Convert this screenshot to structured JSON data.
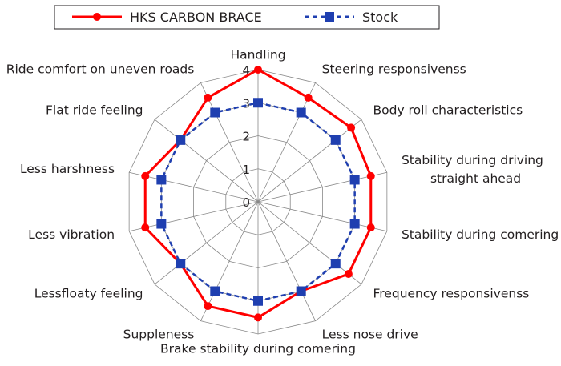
{
  "chart_data": {
    "type": "radar",
    "categories": [
      "Handling",
      "Steering responsivenss",
      "Body roll characteristics",
      "Stability during driving\nstraight ahead",
      "Stability during comering",
      "Frequency responsivenss",
      "Less nose drive",
      "Brake stability during comering",
      "Suppleness",
      "Lessfloaty feeling",
      "Less vibration",
      "Less harshness",
      "Flat ride feeling",
      "Ride comfort on uneven roads"
    ],
    "series": [
      {
        "name": "HKS CARBON BRACE",
        "color": "#ff0000",
        "marker": "circle",
        "line": "solid",
        "values": [
          4,
          3.5,
          3.6,
          3.5,
          3.5,
          3.5,
          3,
          3.5,
          3.5,
          3,
          3.5,
          3.5,
          3,
          3.5
        ]
      },
      {
        "name": "Stock",
        "color": "#1f3fb0",
        "marker": "square",
        "line": "dashed",
        "values": [
          3,
          3,
          3,
          3,
          3,
          3,
          3,
          3,
          3,
          3,
          3,
          3,
          3,
          3
        ]
      }
    ],
    "rlim": [
      0,
      4
    ],
    "rticks": [
      "0",
      "1",
      "2",
      "3",
      "4"
    ],
    "grid": true,
    "legend": "top"
  }
}
